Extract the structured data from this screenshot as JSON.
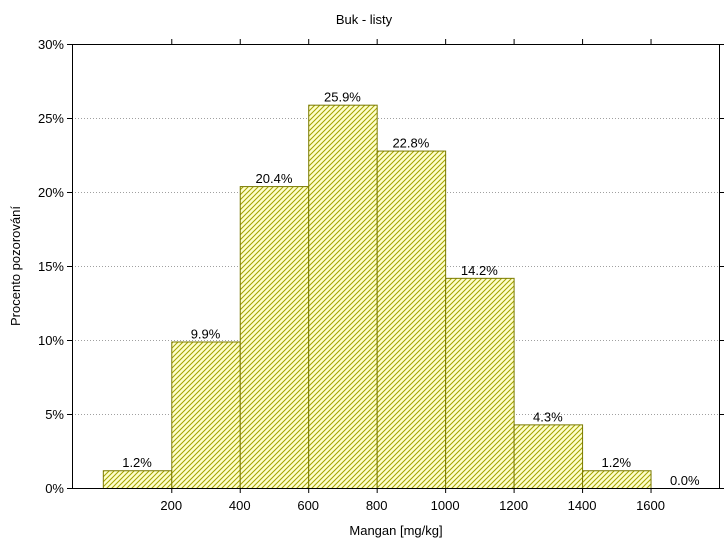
{
  "chart_data": {
    "type": "bar",
    "title": "Buk - listy",
    "xlabel": "Mangan [mg/kg]",
    "ylabel": "Procento pozorování",
    "bins": [
      {
        "from": 0,
        "to": 200,
        "value": 1.2,
        "label": "1.2%"
      },
      {
        "from": 200,
        "to": 400,
        "value": 9.9,
        "label": "9.9%"
      },
      {
        "from": 400,
        "to": 600,
        "value": 20.4,
        "label": "20.4%"
      },
      {
        "from": 600,
        "to": 800,
        "value": 25.9,
        "label": "25.9%"
      },
      {
        "from": 800,
        "to": 1000,
        "value": 22.8,
        "label": "22.8%"
      },
      {
        "from": 1000,
        "to": 1200,
        "value": 14.2,
        "label": "14.2%"
      },
      {
        "from": 1200,
        "to": 1400,
        "value": 4.3,
        "label": "4.3%"
      },
      {
        "from": 1400,
        "to": 1600,
        "value": 1.2,
        "label": "1.2%"
      },
      {
        "from": 1600,
        "to": 1800,
        "value": 0.0,
        "label": "0.0%"
      }
    ],
    "x_ticks": [
      200,
      400,
      600,
      800,
      1000,
      1200,
      1400,
      1600
    ],
    "x_tick_labels": [
      "200",
      "400",
      "600",
      "800",
      "1000",
      "1200",
      "1400",
      "1600"
    ],
    "xlim": [
      -90,
      1800
    ],
    "y_ticks": [
      0,
      5,
      10,
      15,
      20,
      25,
      30
    ],
    "y_tick_labels": [
      "0%",
      "5%",
      "10%",
      "15%",
      "20%",
      "25%",
      "30%"
    ],
    "ylim": [
      0,
      30
    ],
    "grid": "horizontal dotted",
    "colors": {
      "bar_fill": "#ffffcc",
      "bar_hatch": "#a3a300",
      "bar_stroke": "#7a7a00",
      "grid": "#a0a0a0",
      "axis": "#000000"
    }
  }
}
